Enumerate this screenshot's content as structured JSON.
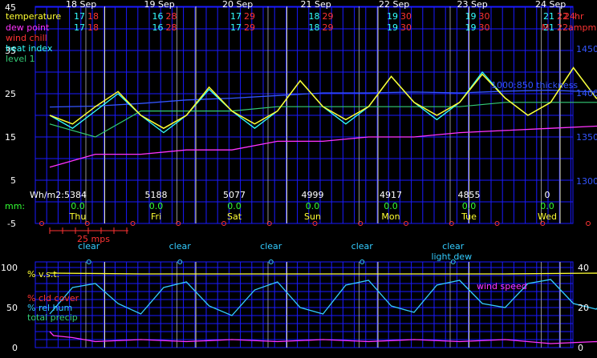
{
  "colors": {
    "grid": "#1a1aff",
    "day_line": "#e8e8b0",
    "temperature": "#ffff33",
    "dew_point": "#ff33ff",
    "wind_chill": "#ff3333",
    "heat_index": "#33ffff",
    "level1": "#33cc77",
    "thickness": "#3355ff",
    "max_temp": "#ff3333",
    "min_temp": "#33ffff",
    "solar": "#ffffff",
    "rain": "#33ff33",
    "weekday": "#ffff33",
    "clear": "#33ccff",
    "marker": "#ff3333",
    "vst": "#ffff33",
    "rel_hum": "#33ccff",
    "wind_speed": "#ff33ff",
    "cld_cover": "#ff3333",
    "total_precip": "#33cc77"
  },
  "top_chart": {
    "left_axis_ticks": [
      "45",
      "35",
      "25",
      "15",
      "5",
      "-5"
    ],
    "right_axis_ticks": [
      "1450",
      "1400",
      "1350",
      "1300"
    ],
    "legend": {
      "temperature": "temperature",
      "dew_point": "dew point",
      "wind_chill": "wind chill",
      "heat_index": "heat index",
      "level1": "level 1",
      "thickness": "1000:850 thickness"
    },
    "days": [
      {
        "date": "18 Sep",
        "max": "18",
        "min": "17",
        "wkday": "Thu",
        "solar": "Wh/m2:5384",
        "rain": "0.0"
      },
      {
        "date": "19 Sep",
        "max": "28",
        "min": "16",
        "wkday": "Fri",
        "solar": "5188",
        "rain": "0.0"
      },
      {
        "date": "20 Sep",
        "max": "29",
        "min": "17",
        "wkday": "Sat",
        "solar": "5077",
        "rain": "0.0"
      },
      {
        "date": "21 Sep",
        "max": "29",
        "min": "18",
        "wkday": "Sun",
        "solar": "4999",
        "rain": "0.0"
      },
      {
        "date": "22 Sep",
        "max": "30",
        "min": "19",
        "wkday": "Mon",
        "solar": "4917",
        "rain": "0.0"
      },
      {
        "date": "23 Sep",
        "max": "30",
        "min": "19",
        "wkday": "Tue",
        "solar": "4855",
        "rain": "0.0"
      },
      {
        "date": "24 Sep",
        "max": "22",
        "min": "21",
        "wkday": "Wed",
        "solar": "0",
        "rain": "0.0"
      }
    ],
    "row1_extra": {
      "max_last_suffix": "24",
      "unit_hr": "hr"
    },
    "row2_extra": {
      "m_label": "M",
      "ampm": "ampm"
    },
    "mm_label": "mm:",
    "wind_scale_label": "25 mps"
  },
  "sky": {
    "clear_labels": [
      "clear",
      "clear",
      "clear",
      "clear",
      "clear"
    ],
    "light_dew": "light dew"
  },
  "bottom_chart": {
    "left_axis_ticks": [
      "100",
      "50",
      "0"
    ],
    "right_axis_ticks": [
      "40",
      "20",
      "0"
    ],
    "legend": {
      "vst": "% v.s.t.",
      "cld_cover": "% cld cover",
      "rel_hum": "% rel hum",
      "total_precip": "total precip",
      "wind_speed": "wind speed"
    }
  },
  "chart_data": {
    "type": "line",
    "x_unit": "hour",
    "x_start": "18 Sep",
    "top_ylim": [
      -5,
      45
    ],
    "series": [
      {
        "name": "temperature",
        "x": [
          0,
          6,
          12,
          18,
          24,
          30,
          36,
          42,
          48,
          54,
          60,
          66,
          72,
          78,
          84,
          90,
          96,
          102,
          108,
          114,
          120,
          126,
          132,
          138,
          144,
          150,
          156
        ],
        "values": [
          20,
          18,
          22,
          25.5,
          20,
          17,
          20,
          26.5,
          21,
          18,
          21,
          28,
          22,
          19,
          22,
          29,
          23,
          20,
          23,
          29.5,
          24,
          20,
          23,
          31,
          24,
          21.5,
          22
        ]
      },
      {
        "name": "dew point",
        "x": [
          0,
          12,
          24,
          36,
          48,
          60,
          72,
          84,
          96,
          108,
          120,
          132,
          144,
          156
        ],
        "values": [
          8,
          11,
          11,
          12,
          12,
          14,
          14,
          15,
          15,
          16,
          16.5,
          17,
          17.5,
          18
        ]
      },
      {
        "name": "heat index",
        "x": [
          0,
          6,
          12,
          18,
          24,
          30,
          36,
          42,
          48,
          54,
          60,
          66,
          72,
          78,
          84,
          90,
          96,
          102,
          108,
          114,
          120,
          126,
          132,
          138,
          144,
          150,
          156
        ],
        "values": [
          20,
          17,
          21,
          25,
          20,
          16,
          20,
          26,
          21,
          17,
          21,
          28,
          22,
          18,
          22,
          29,
          23,
          19,
          23,
          30,
          24,
          20,
          23,
          31,
          24,
          21,
          22
        ]
      },
      {
        "name": "level 1",
        "x": [
          0,
          12,
          24,
          36,
          48,
          60,
          72,
          84,
          96,
          108,
          120,
          132,
          144,
          156
        ],
        "values": [
          18,
          15,
          21,
          21,
          21,
          22,
          22,
          22,
          22,
          22,
          23,
          23,
          23,
          23
        ]
      },
      {
        "name": "1000:850 thickness",
        "x": [
          0,
          12,
          24,
          36,
          48,
          60,
          72,
          84,
          96,
          108,
          120,
          132,
          144,
          156
        ],
        "values": [
          1384,
          1385,
          1388,
          1392,
          1394,
          1397,
          1400,
          1400,
          1401,
          1400,
          1402,
          1403,
          1401,
          1400
        ]
      }
    ],
    "bottom_ylim_left": [
      0,
      100
    ],
    "bottom_ylim_right": [
      0,
      40
    ],
    "bottom_series": [
      {
        "name": "% v.s.t.",
        "x": [
          0,
          24,
          48,
          72,
          96,
          120,
          144,
          156
        ],
        "values": [
          93,
          92,
          92,
          92,
          92,
          92,
          93,
          90
        ]
      },
      {
        "name": "% rel hum",
        "x": [
          0,
          6,
          12,
          18,
          24,
          30,
          36,
          42,
          48,
          54,
          60,
          66,
          72,
          78,
          84,
          90,
          96,
          102,
          108,
          114,
          120,
          126,
          132,
          138,
          144,
          150,
          156
        ],
        "values": [
          42,
          75,
          80,
          55,
          42,
          75,
          82,
          52,
          40,
          72,
          82,
          50,
          42,
          78,
          84,
          52,
          44,
          78,
          84,
          55,
          50,
          80,
          85,
          55,
          48,
          75,
          78
        ]
      },
      {
        "name": "wind speed",
        "x": [
          0,
          1,
          6,
          12,
          24,
          36,
          48,
          60,
          72,
          84,
          96,
          108,
          120,
          132,
          144,
          156
        ],
        "values": [
          8,
          6,
          5,
          3,
          4,
          3,
          4,
          3,
          4,
          3,
          4,
          3,
          4,
          2,
          3,
          2
        ]
      }
    ]
  }
}
